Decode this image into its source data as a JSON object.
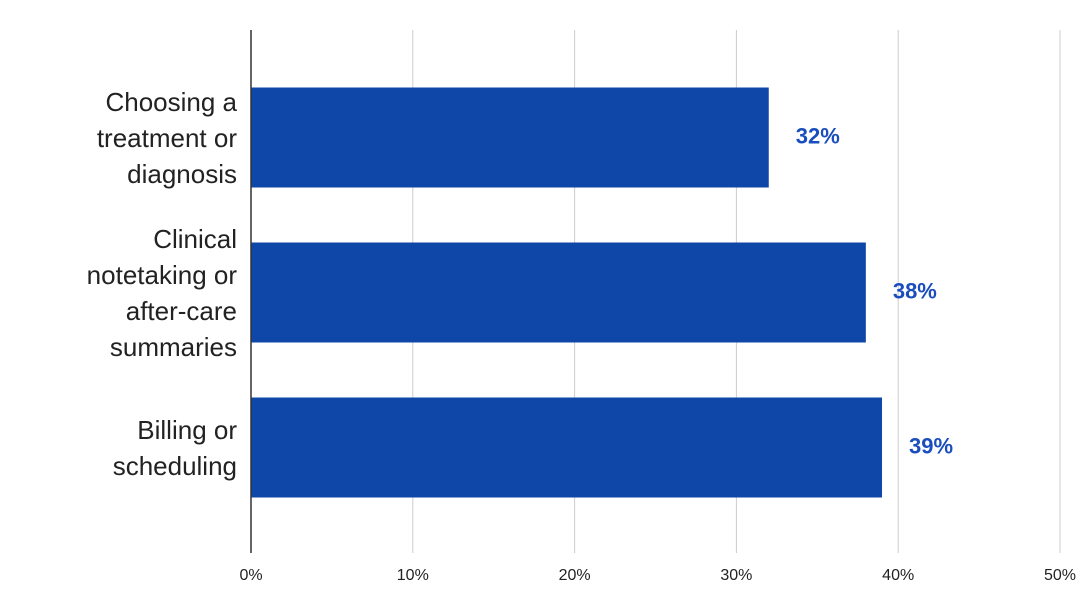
{
  "chart_data": {
    "type": "hbar",
    "categories": [
      "Choosing a treatment or diagnosis",
      "Clinical notetaking or after-care summaries",
      "Billing or scheduling"
    ],
    "values": [
      32,
      38,
      39
    ],
    "value_labels": [
      "32%",
      "38%",
      "39%"
    ],
    "color": "#0f47a8",
    "xlim": [
      0,
      50
    ],
    "xticks": [
      {
        "value": 0,
        "label": "0%"
      },
      {
        "value": 10,
        "label": "10%"
      },
      {
        "value": 20,
        "label": "20%"
      },
      {
        "value": 30,
        "label": "30%"
      },
      {
        "value": 40,
        "label": "40%"
      },
      {
        "value": 50,
        "label": "50%"
      }
    ],
    "grid": true
  }
}
